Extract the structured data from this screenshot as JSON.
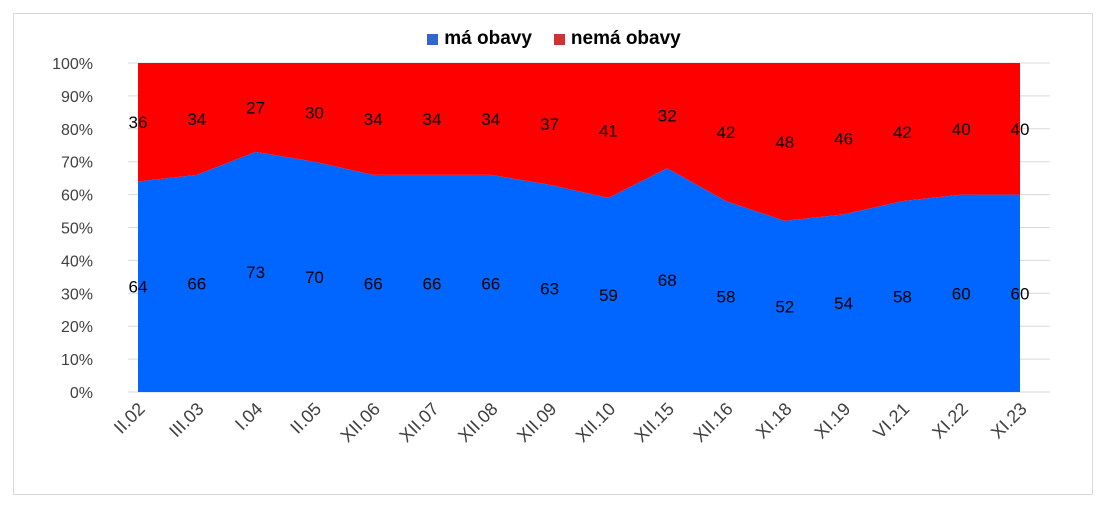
{
  "chart_data": {
    "type": "area",
    "stacked": true,
    "categories": [
      "II.02",
      "III.03",
      "I.04",
      "II.05",
      "XII.06",
      "XII.07",
      "XII.08",
      "XII.09",
      "XII.10",
      "XII.15",
      "XII.16",
      "XI.18",
      "XI.19",
      "VI.21",
      "XI.22",
      "XI.23"
    ],
    "series": [
      {
        "name": "má obavy",
        "color": "#0066ff",
        "values": [
          64,
          66,
          73,
          70,
          66,
          66,
          66,
          63,
          59,
          68,
          58,
          52,
          54,
          58,
          60,
          60
        ]
      },
      {
        "name": "nemá obavy",
        "color": "#ff0000",
        "values": [
          36,
          34,
          27,
          30,
          34,
          34,
          34,
          37,
          41,
          32,
          42,
          48,
          46,
          42,
          40,
          40
        ]
      }
    ],
    "ylim": [
      0,
      100
    ],
    "yticks": [
      "0%",
      "10%",
      "20%",
      "30%",
      "40%",
      "50%",
      "60%",
      "70%",
      "80%",
      "90%",
      "100%"
    ],
    "legend_position": "top",
    "legend_colors": [
      "#3366cc",
      "#cc3333"
    ],
    "grid": true
  }
}
